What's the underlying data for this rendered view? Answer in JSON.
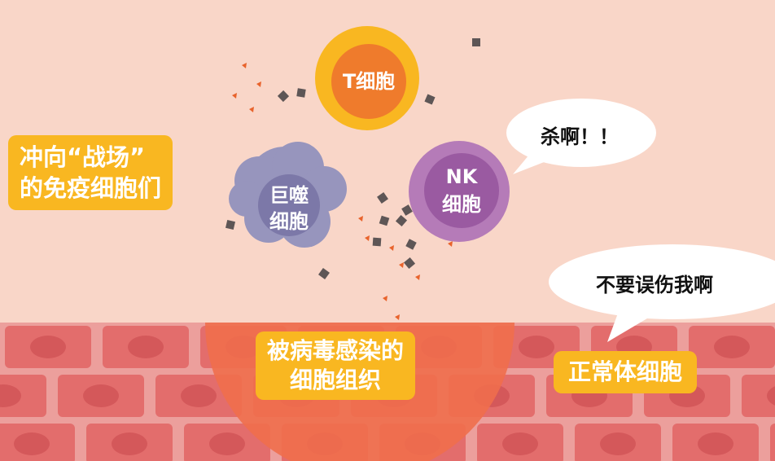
{
  "labels": {
    "battlefield_line1": "冲向“战场”",
    "battlefield_line2": "的免疫细胞们",
    "t_cell": "T细胞",
    "nk_line1": "NK",
    "nk_line2": "细胞",
    "macrophage_line1": "巨噬",
    "macrophage_line2": "细胞",
    "infected_line1": "被病毒感染的",
    "infected_line2": "细胞组织",
    "normal_cells": "正常体细胞"
  },
  "speech": {
    "nk": "杀啊！！",
    "normal": "不要误伤我啊"
  },
  "colors": {
    "background": "#f9d6c8",
    "tissue_band": "#ec9f9c",
    "cell_block": "#e36d6c",
    "infected_zone": "#ef6e4d",
    "tag": "#f9b721",
    "t_cell_ring": "#f9b721",
    "t_cell_core": "#ef7b2c",
    "nk_ring": "#b57bb8",
    "nk_core": "#9a5aa1",
    "macrophage_outer": "#9795bd",
    "macrophage_inner": "#7c78a8"
  },
  "icons": [
    "virus-particle",
    "speech-bubble"
  ]
}
